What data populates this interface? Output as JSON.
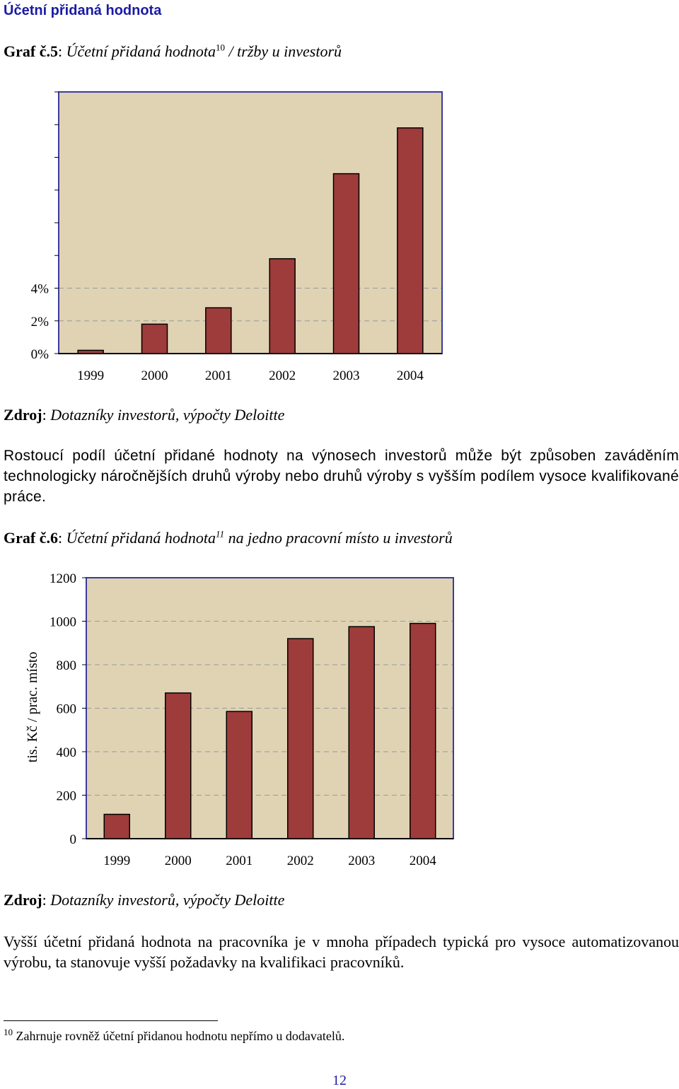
{
  "heading": "Účetní přidaná hodnota",
  "graf5": {
    "label": "Graf č.5",
    "title_text": "Účetní přidaná hodnota",
    "footnote_ref": "10",
    "title_rest": " / tržby u investorů"
  },
  "source5": {
    "label": "Zdroj",
    "text": "Dotazníky investorů, výpočty Deloitte"
  },
  "paragraph1": "Rostoucí podíl účetní přidané hodnoty na výnosech investorů může být způsoben zaváděním technologicky náročnějších druhů výroby nebo druhů výroby s vyšším podílem vysoce kvalifikované práce.",
  "graf6": {
    "label": "Graf č.6",
    "title_text": "Účetní přidaná hodnota",
    "footnote_ref": "11",
    "title_rest": " na jedno pracovní místo u investorů"
  },
  "source6": {
    "label": "Zdroj",
    "text": "Dotazníky investorů, výpočty Deloitte"
  },
  "paragraph2": "Vyšší účetní přidaná hodnota na pracovníka je v mnoha případech typická pro vysoce automatizovanou výrobu, ta stanovuje vyšší požadavky na kvalifikaci pracovníků.",
  "footnote": {
    "num": "10",
    "text": "Zahrnuje rovněž účetní přidanou hodnotu nepřímo u dodavatelů."
  },
  "page_number": "12",
  "colors": {
    "bar": "#9e3b3b",
    "plot_bg": "#dfd3b4",
    "axis": "#3a3aa0",
    "grid": "#9a9a9a"
  },
  "chart_data": [
    {
      "type": "bar",
      "categories": [
        "1999",
        "2000",
        "2001",
        "2002",
        "2003",
        "2004"
      ],
      "values": [
        0.2,
        1.8,
        2.8,
        5.8,
        11.0,
        13.8
      ],
      "yticks": [
        "0%",
        "2%",
        "4%"
      ],
      "ylim": [
        0,
        16
      ],
      "grid": true,
      "title": "",
      "xlabel": "",
      "ylabel": ""
    },
    {
      "type": "bar",
      "categories": [
        "1999",
        "2000",
        "2001",
        "2002",
        "2003",
        "2004"
      ],
      "values": [
        112,
        670,
        585,
        920,
        975,
        990
      ],
      "yticks": [
        "0",
        "200",
        "400",
        "600",
        "800",
        "1000",
        "1200"
      ],
      "ylim": [
        0,
        1200
      ],
      "grid": true,
      "title": "",
      "xlabel": "",
      "ylabel": "tis. Kč / prac. místo"
    }
  ]
}
